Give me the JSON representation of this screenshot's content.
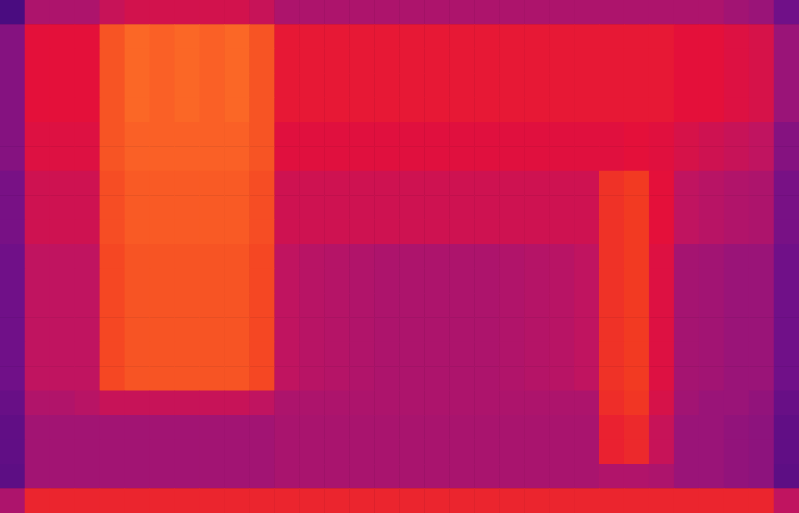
{
  "chart_data": {
    "type": "heatmap",
    "tick_labels": false,
    "color_range": [
      0,
      1
    ],
    "cells": [
      [
        0.3,
        0.55,
        0.55,
        0.55,
        0.62,
        0.65,
        0.65,
        0.65,
        0.65,
        0.65,
        0.62,
        0.55,
        0.55,
        0.55,
        0.55,
        0.55,
        0.55,
        0.55,
        0.55,
        0.55,
        0.55,
        0.55,
        0.55,
        0.55,
        0.55,
        0.55,
        0.55,
        0.55,
        0.55,
        0.52,
        0.5,
        0.4
      ],
      [
        0.45,
        0.7,
        0.7,
        0.7,
        0.84,
        0.87,
        0.86,
        0.87,
        0.86,
        0.87,
        0.84,
        0.72,
        0.72,
        0.72,
        0.72,
        0.72,
        0.72,
        0.72,
        0.72,
        0.72,
        0.72,
        0.72,
        0.72,
        0.72,
        0.72,
        0.72,
        0.72,
        0.7,
        0.7,
        0.68,
        0.66,
        0.5
      ],
      [
        0.45,
        0.7,
        0.7,
        0.7,
        0.84,
        0.87,
        0.86,
        0.87,
        0.86,
        0.87,
        0.84,
        0.72,
        0.72,
        0.72,
        0.72,
        0.72,
        0.72,
        0.72,
        0.72,
        0.72,
        0.72,
        0.72,
        0.72,
        0.72,
        0.72,
        0.72,
        0.72,
        0.7,
        0.7,
        0.68,
        0.66,
        0.5
      ],
      [
        0.45,
        0.7,
        0.7,
        0.7,
        0.84,
        0.87,
        0.86,
        0.87,
        0.86,
        0.87,
        0.84,
        0.72,
        0.72,
        0.72,
        0.72,
        0.72,
        0.72,
        0.72,
        0.72,
        0.72,
        0.72,
        0.72,
        0.72,
        0.72,
        0.72,
        0.72,
        0.72,
        0.7,
        0.7,
        0.68,
        0.66,
        0.5
      ],
      [
        0.45,
        0.7,
        0.7,
        0.7,
        0.84,
        0.87,
        0.86,
        0.87,
        0.86,
        0.87,
        0.84,
        0.72,
        0.72,
        0.72,
        0.72,
        0.72,
        0.72,
        0.72,
        0.72,
        0.72,
        0.72,
        0.72,
        0.72,
        0.72,
        0.72,
        0.72,
        0.72,
        0.7,
        0.7,
        0.68,
        0.66,
        0.5
      ],
      [
        0.45,
        0.68,
        0.68,
        0.68,
        0.84,
        0.86,
        0.86,
        0.86,
        0.86,
        0.86,
        0.84,
        0.69,
        0.69,
        0.69,
        0.69,
        0.69,
        0.69,
        0.69,
        0.69,
        0.69,
        0.69,
        0.69,
        0.69,
        0.69,
        0.69,
        0.7,
        0.69,
        0.66,
        0.64,
        0.62,
        0.6,
        0.45
      ],
      [
        0.45,
        0.68,
        0.68,
        0.68,
        0.84,
        0.86,
        0.86,
        0.86,
        0.86,
        0.86,
        0.84,
        0.69,
        0.69,
        0.69,
        0.69,
        0.69,
        0.69,
        0.69,
        0.69,
        0.69,
        0.69,
        0.69,
        0.69,
        0.69,
        0.69,
        0.7,
        0.69,
        0.66,
        0.64,
        0.62,
        0.6,
        0.45
      ],
      [
        0.42,
        0.64,
        0.64,
        0.64,
        0.83,
        0.85,
        0.85,
        0.85,
        0.85,
        0.85,
        0.83,
        0.64,
        0.64,
        0.64,
        0.64,
        0.64,
        0.64,
        0.64,
        0.64,
        0.64,
        0.64,
        0.64,
        0.64,
        0.64,
        0.78,
        0.8,
        0.7,
        0.6,
        0.58,
        0.56,
        0.55,
        0.42
      ],
      [
        0.42,
        0.64,
        0.64,
        0.64,
        0.83,
        0.85,
        0.85,
        0.85,
        0.85,
        0.85,
        0.83,
        0.64,
        0.64,
        0.64,
        0.64,
        0.64,
        0.64,
        0.64,
        0.64,
        0.64,
        0.64,
        0.64,
        0.64,
        0.64,
        0.78,
        0.8,
        0.7,
        0.6,
        0.58,
        0.56,
        0.55,
        0.42
      ],
      [
        0.42,
        0.64,
        0.64,
        0.64,
        0.83,
        0.85,
        0.85,
        0.85,
        0.85,
        0.85,
        0.83,
        0.64,
        0.64,
        0.64,
        0.64,
        0.64,
        0.64,
        0.64,
        0.64,
        0.64,
        0.64,
        0.64,
        0.64,
        0.64,
        0.78,
        0.8,
        0.7,
        0.6,
        0.58,
        0.56,
        0.55,
        0.42
      ],
      [
        0.4,
        0.6,
        0.6,
        0.6,
        0.82,
        0.84,
        0.84,
        0.84,
        0.84,
        0.84,
        0.82,
        0.6,
        0.58,
        0.57,
        0.56,
        0.55,
        0.55,
        0.55,
        0.55,
        0.55,
        0.56,
        0.57,
        0.58,
        0.6,
        0.78,
        0.8,
        0.68,
        0.53,
        0.52,
        0.5,
        0.5,
        0.4
      ],
      [
        0.4,
        0.6,
        0.6,
        0.6,
        0.82,
        0.84,
        0.84,
        0.84,
        0.84,
        0.84,
        0.82,
        0.6,
        0.58,
        0.57,
        0.56,
        0.55,
        0.55,
        0.55,
        0.55,
        0.55,
        0.56,
        0.57,
        0.58,
        0.6,
        0.78,
        0.8,
        0.68,
        0.53,
        0.52,
        0.5,
        0.5,
        0.4
      ],
      [
        0.4,
        0.6,
        0.6,
        0.6,
        0.82,
        0.84,
        0.84,
        0.84,
        0.84,
        0.84,
        0.82,
        0.6,
        0.58,
        0.57,
        0.56,
        0.55,
        0.55,
        0.55,
        0.55,
        0.55,
        0.56,
        0.57,
        0.58,
        0.6,
        0.78,
        0.8,
        0.68,
        0.53,
        0.52,
        0.5,
        0.5,
        0.4
      ],
      [
        0.4,
        0.6,
        0.6,
        0.6,
        0.82,
        0.84,
        0.84,
        0.84,
        0.84,
        0.84,
        0.82,
        0.6,
        0.58,
        0.57,
        0.56,
        0.55,
        0.55,
        0.55,
        0.55,
        0.55,
        0.56,
        0.57,
        0.58,
        0.6,
        0.78,
        0.8,
        0.68,
        0.53,
        0.52,
        0.5,
        0.5,
        0.4
      ],
      [
        0.4,
        0.6,
        0.6,
        0.6,
        0.82,
        0.84,
        0.84,
        0.84,
        0.84,
        0.84,
        0.82,
        0.6,
        0.58,
        0.57,
        0.56,
        0.55,
        0.55,
        0.55,
        0.55,
        0.55,
        0.56,
        0.57,
        0.58,
        0.6,
        0.78,
        0.8,
        0.68,
        0.53,
        0.52,
        0.5,
        0.5,
        0.4
      ],
      [
        0.4,
        0.6,
        0.6,
        0.6,
        0.82,
        0.84,
        0.84,
        0.84,
        0.84,
        0.84,
        0.82,
        0.6,
        0.58,
        0.57,
        0.56,
        0.55,
        0.55,
        0.55,
        0.55,
        0.55,
        0.56,
        0.57,
        0.58,
        0.6,
        0.78,
        0.8,
        0.68,
        0.53,
        0.52,
        0.5,
        0.5,
        0.4
      ],
      [
        0.38,
        0.56,
        0.56,
        0.58,
        0.62,
        0.62,
        0.62,
        0.62,
        0.62,
        0.62,
        0.6,
        0.55,
        0.55,
        0.55,
        0.55,
        0.55,
        0.55,
        0.55,
        0.55,
        0.55,
        0.55,
        0.55,
        0.55,
        0.55,
        0.77,
        0.79,
        0.66,
        0.52,
        0.5,
        0.5,
        0.48,
        0.38
      ],
      [
        0.36,
        0.52,
        0.52,
        0.52,
        0.52,
        0.52,
        0.52,
        0.52,
        0.52,
        0.52,
        0.52,
        0.54,
        0.54,
        0.54,
        0.54,
        0.54,
        0.54,
        0.54,
        0.54,
        0.54,
        0.54,
        0.54,
        0.54,
        0.54,
        0.74,
        0.76,
        0.62,
        0.5,
        0.5,
        0.48,
        0.47,
        0.36
      ],
      [
        0.36,
        0.52,
        0.52,
        0.52,
        0.52,
        0.52,
        0.52,
        0.52,
        0.52,
        0.52,
        0.52,
        0.54,
        0.54,
        0.54,
        0.54,
        0.54,
        0.54,
        0.54,
        0.54,
        0.54,
        0.54,
        0.54,
        0.54,
        0.54,
        0.74,
        0.76,
        0.62,
        0.5,
        0.5,
        0.48,
        0.47,
        0.36
      ],
      [
        0.35,
        0.52,
        0.52,
        0.52,
        0.52,
        0.52,
        0.52,
        0.52,
        0.52,
        0.52,
        0.52,
        0.54,
        0.54,
        0.54,
        0.54,
        0.54,
        0.54,
        0.54,
        0.54,
        0.54,
        0.54,
        0.54,
        0.54,
        0.54,
        0.56,
        0.56,
        0.55,
        0.5,
        0.5,
        0.48,
        0.47,
        0.35
      ],
      [
        0.55,
        0.75,
        0.75,
        0.75,
        0.75,
        0.75,
        0.75,
        0.75,
        0.75,
        0.75,
        0.75,
        0.75,
        0.75,
        0.75,
        0.75,
        0.75,
        0.75,
        0.75,
        0.75,
        0.75,
        0.75,
        0.75,
        0.75,
        0.75,
        0.75,
        0.75,
        0.75,
        0.75,
        0.75,
        0.75,
        0.75,
        0.6
      ]
    ]
  }
}
